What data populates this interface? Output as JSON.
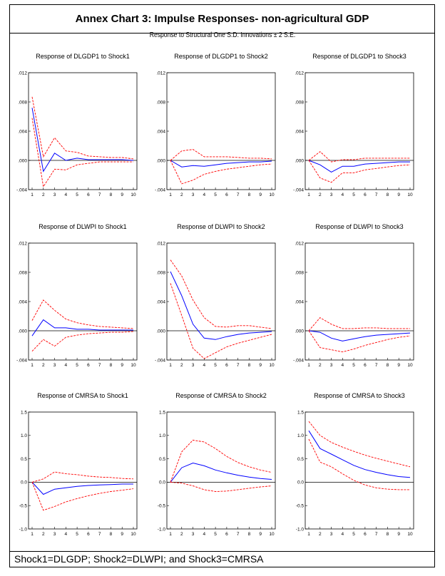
{
  "page": {
    "title": "Annex Chart 3: Impulse Responses- non-agricultural GDP",
    "subtitle": "Response to Structural One S.D. Innovations ± 2 S.E.",
    "footer": "Shock1=DLGDP; Shock2=DLWPI; and Shock3=CMRSA"
  },
  "colors": {
    "response": "#0000ff",
    "bands": "#ff0000",
    "zero_line": "#000000"
  },
  "chart_data": [
    {
      "type": "line",
      "title": "Response of DLGDP1 to Shock1",
      "x": [
        1,
        2,
        3,
        4,
        5,
        6,
        7,
        8,
        9,
        10
      ],
      "ylim": [
        -0.004,
        0.012
      ],
      "yticks": [
        ".012",
        ".008",
        ".004",
        ".000",
        "-.004"
      ],
      "ytick_values": [
        0.012,
        0.008,
        0.004,
        0.0,
        -0.004
      ],
      "series": [
        {
          "name": "response",
          "values": [
            0.0072,
            -0.0015,
            0.001,
            0.0,
            0.0003,
            0.0001,
            0.0001,
            0.0001,
            0.0001,
            0.0
          ]
        },
        {
          "name": "upper",
          "values": [
            0.0087,
            0.0005,
            0.0031,
            0.0013,
            0.0011,
            0.0006,
            0.0005,
            0.0004,
            0.0004,
            0.0002
          ]
        },
        {
          "name": "lower",
          "values": [
            0.0058,
            -0.0036,
            -0.0012,
            -0.0013,
            -0.0006,
            -0.0004,
            -0.0002,
            -0.0002,
            -0.0002,
            -0.0002
          ]
        }
      ]
    },
    {
      "type": "line",
      "title": "Response of DLGDP1 to Shock2",
      "x": [
        1,
        2,
        3,
        4,
        5,
        6,
        7,
        8,
        9,
        10
      ],
      "ylim": [
        -0.004,
        0.012
      ],
      "yticks": [
        ".012",
        ".008",
        ".004",
        ".000",
        "-.004"
      ],
      "ytick_values": [
        0.012,
        0.008,
        0.004,
        0.0,
        -0.004
      ],
      "series": [
        {
          "name": "response",
          "values": [
            0.0,
            -0.0009,
            -0.0007,
            -0.0008,
            -0.0006,
            -0.0004,
            -0.0003,
            -0.0002,
            -0.0002,
            -0.0001
          ]
        },
        {
          "name": "upper",
          "values": [
            0.0,
            0.0013,
            0.0015,
            0.0005,
            0.0005,
            0.0005,
            0.0004,
            0.0003,
            0.0003,
            0.0002
          ]
        },
        {
          "name": "lower",
          "values": [
            0.0,
            -0.0032,
            -0.0027,
            -0.0019,
            -0.0015,
            -0.0012,
            -0.001,
            -0.0008,
            -0.0006,
            -0.0005
          ]
        }
      ]
    },
    {
      "type": "line",
      "title": "Response of DLGDP1 to Shock3",
      "x": [
        1,
        2,
        3,
        4,
        5,
        6,
        7,
        8,
        9,
        10
      ],
      "ylim": [
        -0.004,
        0.012
      ],
      "yticks": [
        ".012",
        ".008",
        ".004",
        ".000",
        "-.004"
      ],
      "ytick_values": [
        0.012,
        0.008,
        0.004,
        0.0,
        -0.004
      ],
      "series": [
        {
          "name": "response",
          "values": [
            0.0,
            -0.0006,
            -0.0016,
            -0.0008,
            -0.0008,
            -0.0005,
            -0.0004,
            -0.0003,
            -0.0002,
            -0.0002
          ]
        },
        {
          "name": "upper",
          "values": [
            0.0,
            0.0012,
            -0.0002,
            0.0001,
            0.0001,
            0.0003,
            0.0003,
            0.0003,
            0.0003,
            0.0003
          ]
        },
        {
          "name": "lower",
          "values": [
            0.0,
            -0.0024,
            -0.003,
            -0.0017,
            -0.0017,
            -0.0013,
            -0.0011,
            -0.0009,
            -0.0007,
            -0.0006
          ]
        }
      ]
    },
    {
      "type": "line",
      "title": "Response of DLWPI to Shock1",
      "x": [
        1,
        2,
        3,
        4,
        5,
        6,
        7,
        8,
        9,
        10
      ],
      "ylim": [
        -0.004,
        0.012
      ],
      "yticks": [
        ".012",
        ".008",
        ".004",
        ".000",
        "-.004"
      ],
      "ytick_values": [
        0.012,
        0.008,
        0.004,
        0.0,
        -0.004
      ],
      "series": [
        {
          "name": "response",
          "values": [
            -0.0007,
            0.0015,
            0.0004,
            0.0004,
            0.0002,
            0.0002,
            0.0001,
            0.0001,
            0.0001,
            0.0001
          ]
        },
        {
          "name": "upper",
          "values": [
            0.0014,
            0.0042,
            0.0028,
            0.0016,
            0.0011,
            0.0008,
            0.0006,
            0.0005,
            0.0004,
            0.0003
          ]
        },
        {
          "name": "lower",
          "values": [
            -0.0028,
            -0.0012,
            -0.0021,
            -0.0009,
            -0.0006,
            -0.0004,
            -0.0003,
            -0.0002,
            -0.0002,
            -0.0001
          ]
        }
      ]
    },
    {
      "type": "line",
      "title": "Response of DLWPI to Shock2",
      "x": [
        1,
        2,
        3,
        4,
        5,
        6,
        7,
        8,
        9,
        10
      ],
      "ylim": [
        -0.004,
        0.012
      ],
      "yticks": [
        ".012",
        ".008",
        ".004",
        ".000",
        "-.004"
      ],
      "ytick_values": [
        0.012,
        0.008,
        0.004,
        0.0,
        -0.004
      ],
      "series": [
        {
          "name": "response",
          "values": [
            0.0081,
            0.0048,
            0.0009,
            -0.001,
            -0.0012,
            -0.0008,
            -0.0005,
            -0.0003,
            -0.0002,
            -0.0001
          ]
        },
        {
          "name": "upper",
          "values": [
            0.0097,
            0.0075,
            0.0042,
            0.0018,
            0.0006,
            0.0005,
            0.0007,
            0.0007,
            0.0005,
            0.0003
          ]
        },
        {
          "name": "lower",
          "values": [
            0.0065,
            0.0021,
            -0.0024,
            -0.0038,
            -0.003,
            -0.0022,
            -0.0017,
            -0.0013,
            -0.0009,
            -0.0005
          ]
        }
      ]
    },
    {
      "type": "line",
      "title": "Response of DLWPI to Shock3",
      "x": [
        1,
        2,
        3,
        4,
        5,
        6,
        7,
        8,
        9,
        10
      ],
      "ylim": [
        -0.004,
        0.012
      ],
      "yticks": [
        ".012",
        ".008",
        ".004",
        ".000",
        "-.004"
      ],
      "ytick_values": [
        0.012,
        0.008,
        0.004,
        0.0,
        -0.004
      ],
      "series": [
        {
          "name": "response",
          "values": [
            0.0,
            -0.0002,
            -0.001,
            -0.0014,
            -0.0011,
            -0.0008,
            -0.0006,
            -0.0005,
            -0.0004,
            -0.0003
          ]
        },
        {
          "name": "upper",
          "values": [
            0.0,
            0.0018,
            0.0009,
            0.0003,
            0.0003,
            0.0004,
            0.0004,
            0.0003,
            0.0003,
            0.0003
          ]
        },
        {
          "name": "lower",
          "values": [
            0.0,
            -0.0023,
            -0.0026,
            -0.0029,
            -0.0025,
            -0.002,
            -0.0016,
            -0.0012,
            -0.0009,
            -0.0007
          ]
        }
      ]
    },
    {
      "type": "line",
      "title": "Response of CMRSA to Shock1",
      "x": [
        1,
        2,
        3,
        4,
        5,
        6,
        7,
        8,
        9,
        10
      ],
      "ylim": [
        -1.0,
        1.5
      ],
      "yticks": [
        "1.5",
        "1.0",
        "0.5",
        "0.0",
        "-0.5",
        "-1.0"
      ],
      "ytick_values": [
        1.5,
        1.0,
        0.5,
        0.0,
        -0.5,
        -1.0
      ],
      "series": [
        {
          "name": "response",
          "values": [
            0.0,
            -0.26,
            -0.15,
            -0.12,
            -0.09,
            -0.07,
            -0.06,
            -0.05,
            -0.04,
            -0.04
          ]
        },
        {
          "name": "upper",
          "values": [
            0.0,
            0.07,
            0.22,
            0.18,
            0.16,
            0.13,
            0.11,
            0.1,
            0.08,
            0.07
          ]
        },
        {
          "name": "lower",
          "values": [
            0.0,
            -0.6,
            -0.52,
            -0.42,
            -0.35,
            -0.29,
            -0.24,
            -0.2,
            -0.17,
            -0.14
          ]
        }
      ]
    },
    {
      "type": "line",
      "title": "Response of CMRSA to Shock2",
      "x": [
        1,
        2,
        3,
        4,
        5,
        6,
        7,
        8,
        9,
        10
      ],
      "ylim": [
        -1.0,
        1.5
      ],
      "yticks": [
        "1.5",
        "1.0",
        "0.5",
        "0.0",
        "-0.5",
        "-1.0"
      ],
      "ytick_values": [
        1.5,
        1.0,
        0.5,
        0.0,
        -0.5,
        -1.0
      ],
      "series": [
        {
          "name": "response",
          "values": [
            0.0,
            0.31,
            0.41,
            0.35,
            0.26,
            0.2,
            0.15,
            0.11,
            0.08,
            0.06
          ]
        },
        {
          "name": "upper",
          "values": [
            0.0,
            0.65,
            0.9,
            0.86,
            0.72,
            0.55,
            0.42,
            0.33,
            0.26,
            0.21
          ]
        },
        {
          "name": "lower",
          "values": [
            0.0,
            -0.02,
            -0.08,
            -0.16,
            -0.2,
            -0.19,
            -0.16,
            -0.13,
            -0.1,
            -0.08
          ]
        }
      ]
    },
    {
      "type": "line",
      "title": "Response of CMRSA to Shock3",
      "x": [
        1,
        2,
        3,
        4,
        5,
        6,
        7,
        8,
        9,
        10
      ],
      "ylim": [
        -1.0,
        1.5
      ],
      "yticks": [
        "1.5",
        "1.0",
        "0.5",
        "0.0",
        "-0.5",
        "-1.0"
      ],
      "ytick_values": [
        1.5,
        1.0,
        0.5,
        0.0,
        -0.5,
        -1.0
      ],
      "series": [
        {
          "name": "response",
          "values": [
            1.1,
            0.72,
            0.6,
            0.48,
            0.36,
            0.27,
            0.21,
            0.16,
            0.12,
            0.1
          ]
        },
        {
          "name": "upper",
          "values": [
            1.3,
            1.0,
            0.85,
            0.75,
            0.66,
            0.58,
            0.51,
            0.45,
            0.39,
            0.33
          ]
        },
        {
          "name": "lower",
          "values": [
            0.92,
            0.43,
            0.33,
            0.18,
            0.04,
            -0.06,
            -0.12,
            -0.15,
            -0.16,
            -0.16
          ]
        }
      ]
    }
  ]
}
